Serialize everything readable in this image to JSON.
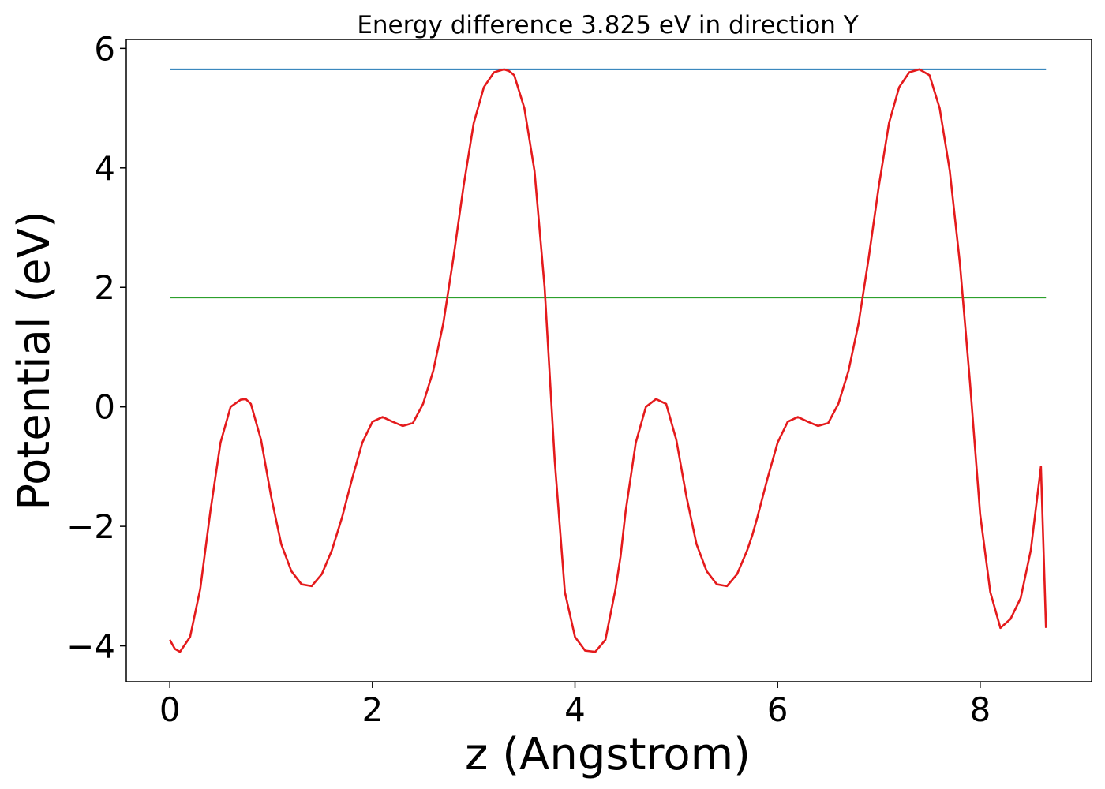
{
  "chart_data": {
    "type": "line",
    "title": "Energy difference 3.825 eV in direction Y",
    "xlabel": "z (Angstrom)",
    "ylabel": "Potential (eV)",
    "xlim": [
      -0.43,
      9.1
    ],
    "ylim": [
      -4.6,
      6.15
    ],
    "xticks": [
      0,
      2,
      4,
      6,
      8
    ],
    "yticks": [
      -4,
      -2,
      0,
      2,
      4,
      6
    ],
    "xtick_labels": [
      "0",
      "2",
      "4",
      "6",
      "8"
    ],
    "ytick_labels": [
      "−4",
      "−2",
      "0",
      "2",
      "4",
      "6"
    ],
    "grid": false,
    "series": [
      {
        "color": "#1f77b4",
        "x": [
          0,
          8.65
        ],
        "y": [
          5.65,
          5.65
        ]
      },
      {
        "color": "#2ca02c",
        "x": [
          0,
          8.65
        ],
        "y": [
          1.83,
          1.83
        ]
      },
      {
        "color": "#e41a1c",
        "x": [
          0,
          0.05,
          0.1,
          0.2,
          0.3,
          0.4,
          0.5,
          0.6,
          0.7,
          0.75,
          0.8,
          0.9,
          1.0,
          1.1,
          1.2,
          1.3,
          1.4,
          1.5,
          1.6,
          1.7,
          1.8,
          1.9,
          2.0,
          2.1,
          2.2,
          2.3,
          2.4,
          2.5,
          2.6,
          2.7,
          2.8,
          2.9,
          3.0,
          3.1,
          3.2,
          3.3,
          3.35,
          3.4,
          3.5,
          3.6,
          3.7,
          3.8,
          3.9,
          4.0,
          4.1,
          4.2,
          4.3,
          4.4,
          4.45,
          4.5,
          4.6,
          4.7,
          4.8,
          4.9,
          5.0,
          5.1,
          5.2,
          5.3,
          5.4,
          5.5,
          5.6,
          5.7,
          5.75,
          5.8,
          5.9,
          6.0,
          6.1,
          6.2,
          6.3,
          6.4,
          6.5,
          6.6,
          6.7,
          6.8,
          6.9,
          7.0,
          7.1,
          7.2,
          7.3,
          7.4,
          7.5,
          7.6,
          7.7,
          7.8,
          7.9,
          8.0,
          8.1,
          8.2,
          8.3,
          8.4,
          8.5,
          8.6,
          8.65
        ],
        "y": [
          -3.9,
          -4.05,
          -4.1,
          -3.85,
          -3.05,
          -1.75,
          -0.6,
          0.0,
          0.12,
          0.13,
          0.05,
          -0.55,
          -1.5,
          -2.3,
          -2.75,
          -2.97,
          -3.0,
          -2.8,
          -2.4,
          -1.85,
          -1.2,
          -0.6,
          -0.25,
          -0.17,
          -0.25,
          -0.32,
          -0.27,
          0.05,
          0.6,
          1.4,
          2.5,
          3.7,
          4.75,
          5.35,
          5.6,
          5.65,
          5.62,
          5.55,
          5.0,
          3.95,
          2.0,
          -0.9,
          -3.1,
          -3.85,
          -4.08,
          -4.1,
          -3.9,
          -3.05,
          -2.5,
          -1.75,
          -0.6,
          0.0,
          0.13,
          0.05,
          -0.55,
          -1.5,
          -2.3,
          -2.75,
          -2.97,
          -3.0,
          -2.8,
          -2.4,
          -2.15,
          -1.85,
          -1.2,
          -0.6,
          -0.25,
          -0.17,
          -0.25,
          -0.32,
          -0.27,
          0.05,
          0.6,
          1.4,
          2.5,
          3.7,
          4.75,
          5.35,
          5.6,
          5.65,
          5.55,
          5.0,
          3.95,
          2.4,
          0.4,
          -1.8,
          -3.1,
          -3.7,
          -3.55,
          -3.2,
          -2.4,
          -1.0,
          -3.7
        ]
      }
    ]
  }
}
